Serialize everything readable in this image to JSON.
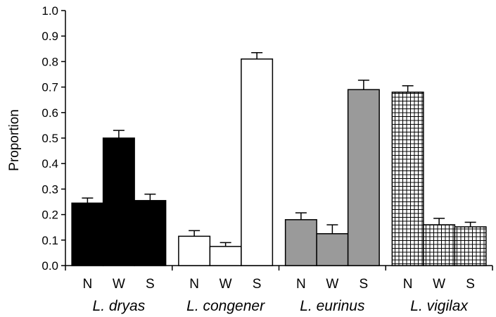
{
  "chart_data": {
    "type": "bar",
    "ylabel": "Proportion",
    "xlabel": "",
    "ylim": [
      0,
      1.0
    ],
    "yticks": [
      "0.0",
      "0.1",
      "0.2",
      "0.3",
      "0.4",
      "0.5",
      "0.6",
      "0.7",
      "0.8",
      "0.9",
      "1.0"
    ],
    "grid": false,
    "legend": "none",
    "groups": [
      {
        "name": "L. dryas",
        "fill": "solid-black",
        "categories": [
          "N",
          "W",
          "S"
        ],
        "values": [
          0.245,
          0.5,
          0.255
        ],
        "errors": [
          0.02,
          0.03,
          0.025
        ]
      },
      {
        "name": "L. congener",
        "fill": "white",
        "categories": [
          "N",
          "W",
          "S"
        ],
        "values": [
          0.115,
          0.075,
          0.81
        ],
        "errors": [
          0.022,
          0.015,
          0.025
        ]
      },
      {
        "name": "L. eurinus",
        "fill": "gray",
        "categories": [
          "N",
          "W",
          "S"
        ],
        "values": [
          0.18,
          0.125,
          0.69
        ],
        "errors": [
          0.027,
          0.035,
          0.037
        ]
      },
      {
        "name": "L. vigilax",
        "fill": "crosshatch-grid",
        "categories": [
          "N",
          "W",
          "S"
        ],
        "values": [
          0.68,
          0.16,
          0.152
        ],
        "errors": [
          0.025,
          0.025,
          0.018
        ]
      }
    ],
    "colors": {
      "dark": "#000000",
      "gray": "#9a9a9a",
      "white": "#ffffff",
      "grid_line": "#000000"
    }
  }
}
